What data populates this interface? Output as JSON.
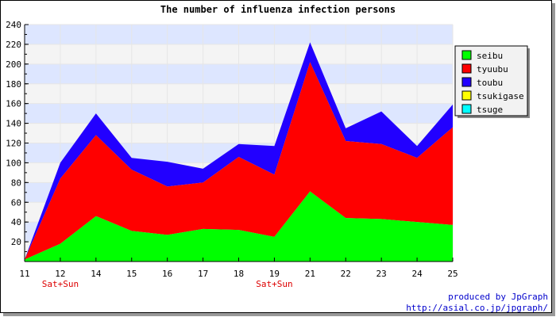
{
  "chart_data": {
    "type": "area",
    "stacked": true,
    "title": "The number of influenza infection persons",
    "x": [
      "11",
      "12",
      "14",
      "15",
      "16",
      "17",
      "18",
      "19",
      "21",
      "22",
      "23",
      "24",
      "25"
    ],
    "x_sublabels": [
      "",
      "Sat+Sun",
      "",
      "",
      "",
      "",
      "",
      "Sat+Sun",
      "",
      "",
      "",
      "",
      ""
    ],
    "ylim": [
      0,
      240
    ],
    "yticks": [
      20,
      40,
      60,
      80,
      100,
      120,
      140,
      160,
      180,
      200,
      220,
      240
    ],
    "grid": true,
    "legend_position": "right",
    "series": [
      {
        "name": "seibu",
        "color": "#00ff00",
        "values": [
          2,
          18,
          46,
          31,
          27,
          33,
          32,
          25,
          71,
          44,
          43,
          40,
          37
        ]
      },
      {
        "name": "tyuubu",
        "color": "#ff0000",
        "values": [
          0,
          66,
          82,
          62,
          49,
          47,
          74,
          63,
          131,
          78,
          76,
          65,
          99
        ]
      },
      {
        "name": "toubu",
        "color": "#2200ff",
        "values": [
          0,
          16,
          22,
          12,
          25,
          14,
          13,
          29,
          20,
          13,
          33,
          12,
          23
        ]
      },
      {
        "name": "tsukigase",
        "color": "#ffff00",
        "values": [
          0,
          0,
          0,
          0,
          0,
          0,
          0,
          0,
          0,
          0,
          0,
          0,
          0
        ]
      },
      {
        "name": "tsuge",
        "color": "#00ffff",
        "values": [
          0,
          0,
          0,
          0,
          0,
          0,
          0,
          0,
          0,
          0,
          0,
          0,
          0
        ]
      }
    ]
  },
  "footer": {
    "produced_by": "produced by JpGraph",
    "url": "http://asial.co.jp/jpgraph/"
  }
}
